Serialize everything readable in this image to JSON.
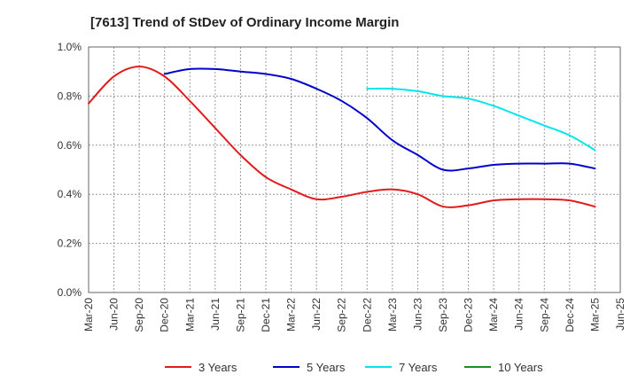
{
  "chart_data": {
    "type": "line",
    "title": "[7613]  Trend of StDev of Ordinary Income Margin",
    "xlabel": "",
    "ylabel": "",
    "x_ticks": [
      "Mar-20",
      "Jun-20",
      "Sep-20",
      "Dec-20",
      "Mar-21",
      "Jun-21",
      "Sep-21",
      "Dec-21",
      "Mar-22",
      "Jun-22",
      "Sep-22",
      "Dec-22",
      "Mar-23",
      "Jun-23",
      "Sep-23",
      "Dec-23",
      "Mar-24",
      "Jun-24",
      "Sep-24",
      "Dec-24",
      "Mar-25",
      "Jun-25"
    ],
    "y_ticks": [
      "0.0%",
      "0.2%",
      "0.4%",
      "0.6%",
      "0.8%",
      "1.0%"
    ],
    "ylim": [
      0,
      1.0
    ],
    "y_unit": "%",
    "grid": true,
    "legend_position": "bottom",
    "series": [
      {
        "name": "3 Years",
        "color": "#e31a1c",
        "x": [
          "Mar-20",
          "Jun-20",
          "Sep-20",
          "Dec-20",
          "Mar-21",
          "Jun-21",
          "Sep-21",
          "Dec-21",
          "Mar-22",
          "Jun-22",
          "Sep-22",
          "Dec-22",
          "Mar-23",
          "Jun-23",
          "Sep-23",
          "Dec-23",
          "Mar-24",
          "Jun-24",
          "Sep-24",
          "Dec-24",
          "Mar-25"
        ],
        "values": [
          0.77,
          0.88,
          0.92,
          0.88,
          0.78,
          0.67,
          0.56,
          0.47,
          0.42,
          0.38,
          0.39,
          0.41,
          0.42,
          0.4,
          0.35,
          0.355,
          0.375,
          0.38,
          0.38,
          0.375,
          0.35
        ]
      },
      {
        "name": "5 Years",
        "color": "#0000cc",
        "x": [
          "Dec-20",
          "Mar-21",
          "Jun-21",
          "Sep-21",
          "Dec-21",
          "Mar-22",
          "Jun-22",
          "Sep-22",
          "Dec-22",
          "Mar-23",
          "Jun-23",
          "Sep-23",
          "Dec-23",
          "Mar-24",
          "Jun-24",
          "Sep-24",
          "Dec-24",
          "Mar-25"
        ],
        "values": [
          0.89,
          0.91,
          0.91,
          0.9,
          0.89,
          0.87,
          0.83,
          0.78,
          0.71,
          0.62,
          0.56,
          0.5,
          0.505,
          0.52,
          0.525,
          0.525,
          0.525,
          0.505
        ]
      },
      {
        "name": "7 Years",
        "color": "#00e5ee",
        "x": [
          "Dec-22",
          "Mar-23",
          "Jun-23",
          "Sep-23",
          "Dec-23",
          "Mar-24",
          "Jun-24",
          "Sep-24",
          "Dec-24",
          "Mar-25"
        ],
        "values": [
          0.83,
          0.83,
          0.82,
          0.8,
          0.79,
          0.76,
          0.72,
          0.68,
          0.64,
          0.58
        ]
      },
      {
        "name": "10 Years",
        "color": "#228b22",
        "x": [],
        "values": []
      }
    ]
  }
}
